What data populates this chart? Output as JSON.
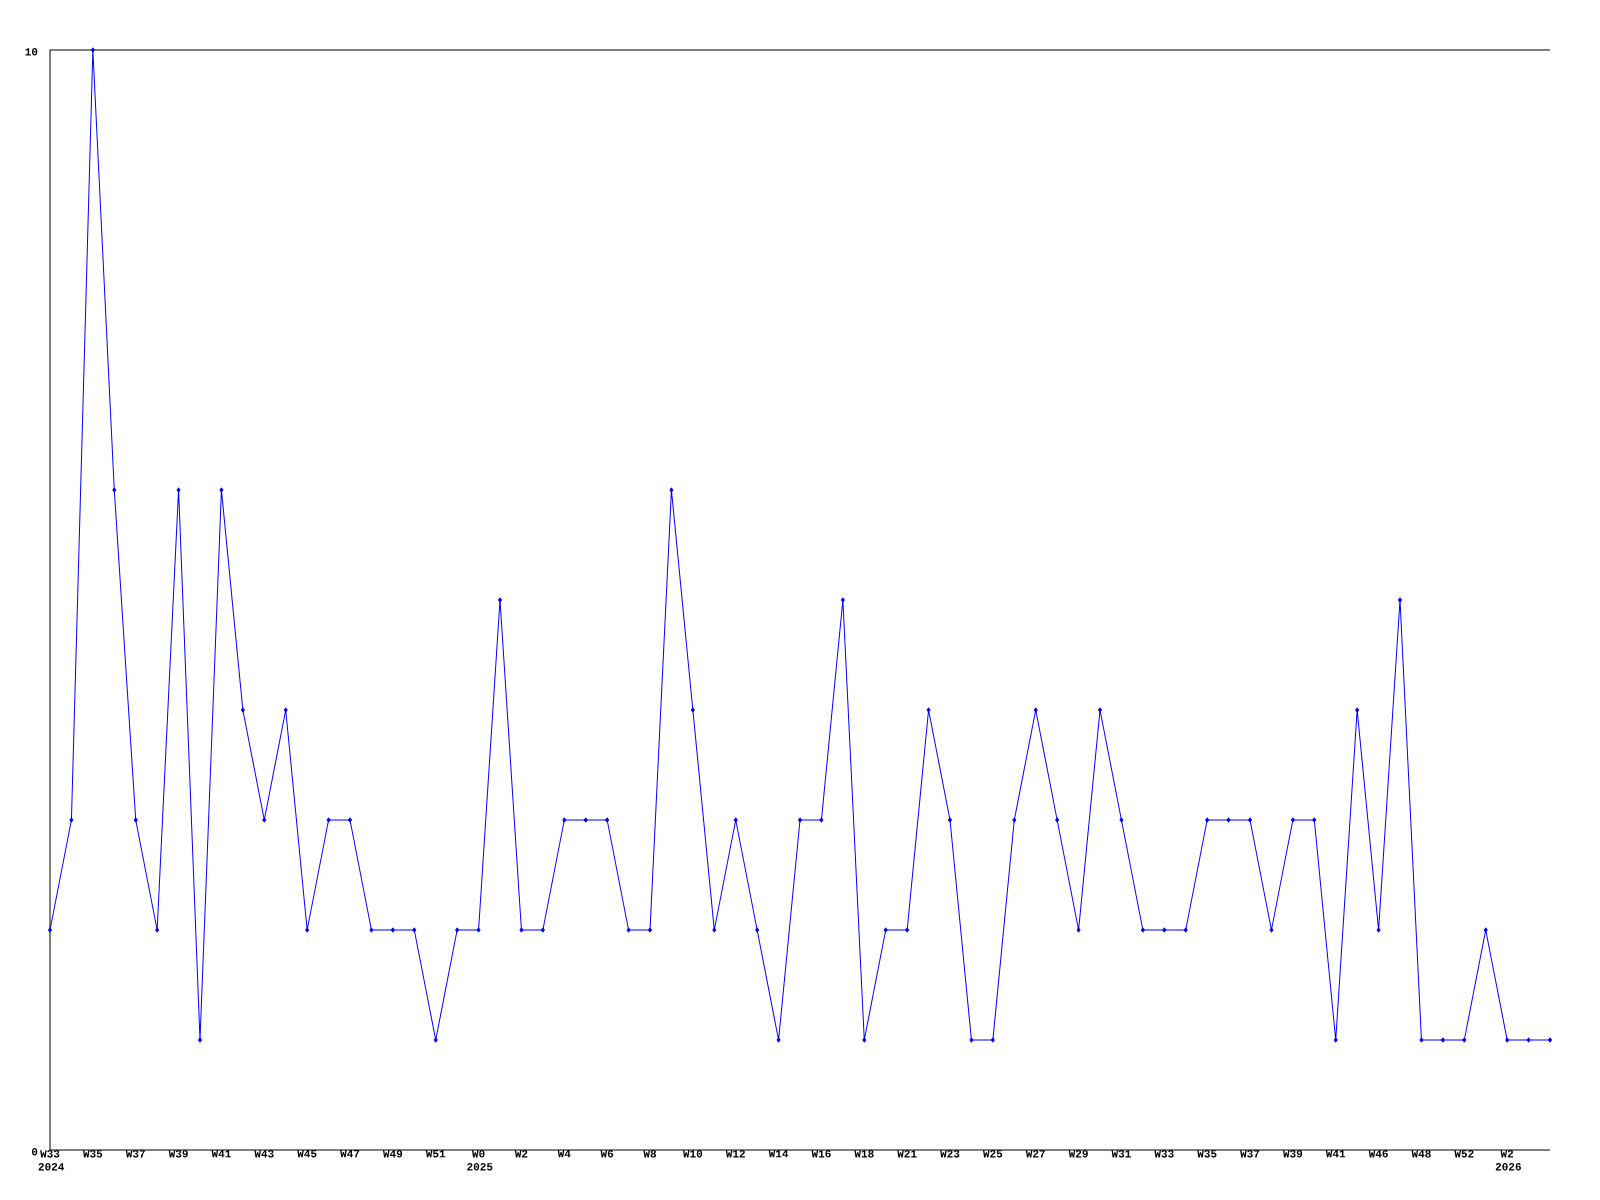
{
  "chart_data": {
    "type": "line",
    "color": "#0000ff",
    "marker": "diamond",
    "line_style": "solid",
    "categories": [
      "W33 2024",
      null,
      "W35",
      null,
      "W37",
      null,
      "W39",
      null,
      "W41",
      null,
      "W43",
      null,
      "W45",
      null,
      "W47",
      null,
      "W49",
      null,
      "W51",
      null,
      "W0 2025",
      null,
      "W2",
      null,
      "W4",
      null,
      "W6",
      null,
      "W8",
      null,
      "W10",
      null,
      "W12",
      null,
      "W14",
      null,
      "W16",
      null,
      "W18",
      null,
      "W21",
      null,
      "W23",
      null,
      "W25",
      null,
      "W27",
      null,
      "W29",
      null,
      "W31",
      null,
      "W33",
      null,
      "W35",
      null,
      "W37",
      null,
      "W39",
      null,
      "W41",
      null,
      "W46",
      null,
      "W48",
      null,
      "W52",
      null,
      "W2 2026",
      null,
      null
    ],
    "values": [
      2,
      3,
      10,
      6,
      3,
      2,
      6,
      1,
      6,
      4,
      3,
      4,
      2,
      3,
      3,
      2,
      2,
      2,
      1,
      2,
      2,
      5,
      2,
      2,
      3,
      3,
      3,
      2,
      2,
      6,
      4,
      2,
      3,
      2,
      1,
      3,
      3,
      5,
      1,
      2,
      2,
      4,
      3,
      1,
      1,
      3,
      4,
      3,
      2,
      4,
      3,
      2,
      2,
      2,
      3,
      3,
      3,
      2,
      3,
      3,
      1,
      4,
      2,
      5,
      1,
      1,
      1,
      2,
      1,
      1,
      1
    ],
    "ylim": [
      0,
      10
    ],
    "yticks": [
      0,
      10
    ]
  }
}
